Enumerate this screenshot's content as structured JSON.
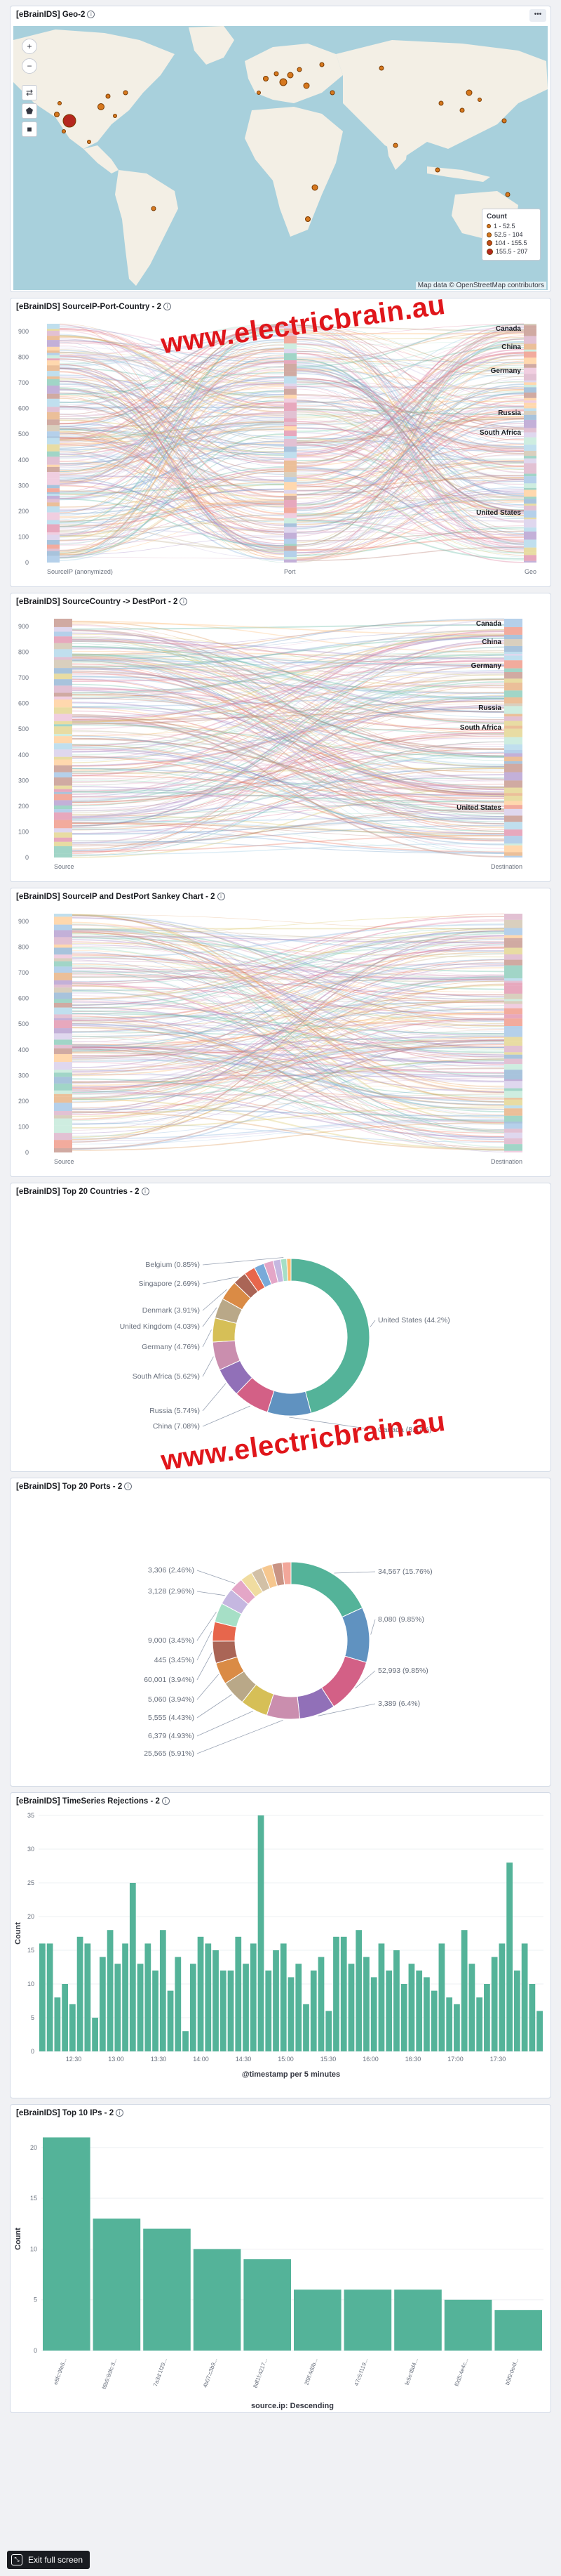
{
  "panels": {
    "geo": {
      "title": "[eBrainIDS] Geo-2"
    },
    "sankey_country": {
      "title": "[eBrainIDS] SourceIP-Port-Country - 2"
    },
    "sankey_dest": {
      "title": "[eBrainIDS] SourceCountry -> DestPort - 2"
    },
    "sankey_ipport": {
      "title": "[eBrainIDS] SourceIP and DestPort Sankey Chart - 2"
    },
    "top_countries": {
      "title": "[eBrainIDS] Top 20 Countries - 2"
    },
    "top_ports": {
      "title": "[eBrainIDS] Top 20 Ports - 2"
    },
    "timeseries": {
      "title": "[eBrainIDS] TimeSeries Rejections - 2"
    },
    "top_ips": {
      "title": "[eBrainIDS] Top 10 IPs - 2"
    }
  },
  "map": {
    "legend_title": "Count",
    "legend_items": [
      "1 - 52.5",
      "52.5 - 104",
      "104 - 155.5",
      "155.5 - 207"
    ],
    "attribution": "Map data © OpenStreetMap contributors",
    "buttons": [
      "+",
      "−",
      "⇄",
      "⬟",
      "■"
    ],
    "colors": {
      "water": "#a8d0dc",
      "land": "#f3efe5",
      "marker": "#d6781e"
    }
  },
  "watermark": {
    "text": "www.electricbrain.au"
  },
  "options_icon": "•••",
  "exit_fullscreen": "Exit full screen",
  "chart_data": [
    {
      "type": "sankey",
      "title": "[eBrainIDS] SourceIP-Port-Country - 2",
      "y_ticks": [
        0,
        100,
        200,
        300,
        400,
        500,
        600,
        700,
        800,
        900
      ],
      "ylim": [
        0,
        930
      ],
      "columns": [
        "SourceIP (anonymized)",
        "Port",
        "Geo"
      ],
      "node_labels": [
        "Canada",
        "China",
        "Germany",
        "Russia",
        "South Africa",
        "United States"
      ]
    },
    {
      "type": "sankey",
      "title": "[eBrainIDS] SourceCountry -> DestPort - 2",
      "y_ticks": [
        0,
        100,
        200,
        300,
        400,
        500,
        600,
        700,
        800,
        900
      ],
      "ylim": [
        0,
        930
      ],
      "columns": [
        "Source",
        "Destination"
      ],
      "node_labels": [
        "Canada",
        "China",
        "Germany",
        "Russia",
        "South Africa",
        "United States"
      ]
    },
    {
      "type": "sankey",
      "title": "[eBrainIDS] SourceIP and DestPort Sankey Chart - 2",
      "y_ticks": [
        0,
        100,
        200,
        300,
        400,
        500,
        600,
        700,
        800,
        900
      ],
      "ylim": [
        0,
        930
      ],
      "columns": [
        "Source",
        "Destination"
      ],
      "node_labels": []
    },
    {
      "type": "pie",
      "title": "[eBrainIDS] Top 20 Countries - 2",
      "labels": [
        "United States (44.2%)",
        "Canada (8.67%)",
        "China (7.08%)",
        "Russia (5.74%)",
        "South Africa (5.62%)",
        "Germany (4.76%)",
        "United Kingdom (4.03%)",
        "Denmark (3.91%)",
        "Singapore (2.69%)",
        "Belgium (0.85%)"
      ],
      "slices": [
        44.2,
        8.67,
        7.08,
        5.74,
        5.62,
        4.76,
        4.03,
        3.91,
        2.69,
        2.2,
        2.0,
        1.9,
        1.5,
        1.2,
        0.85
      ],
      "colors": [
        "#54b399",
        "#6092c0",
        "#d36086",
        "#9170b8",
        "#ca8eae",
        "#d6bf57",
        "#b9a888",
        "#da8b45",
        "#aa6556",
        "#e7664c",
        "#79aad9",
        "#e4a6c7",
        "#c5b7e0",
        "#a6dfc6",
        "#ffb86b"
      ]
    },
    {
      "type": "pie",
      "title": "[eBrainIDS] Top 20 Ports - 2",
      "labels": [
        "34,567 (15.76%)",
        "8,080 (9.85%)",
        "52,993 (9.85%)",
        "3,389 (6.4%)",
        "25,565 (5.91%)",
        "6,379 (4.93%)",
        "5,555 (4.43%)",
        "5,060 (3.94%)",
        "60,001 (3.94%)",
        "445 (3.45%)",
        "9,000 (3.45%)",
        "3,128 (2.96%)",
        "3,306 (2.46%)"
      ],
      "slices": [
        15.76,
        9.85,
        9.85,
        6.4,
        5.91,
        4.93,
        4.43,
        3.94,
        3.94,
        3.45,
        3.45,
        2.96,
        2.46,
        2.2,
        2.0,
        1.9,
        1.8,
        1.6
      ],
      "colors": [
        "#54b399",
        "#6092c0",
        "#d36086",
        "#9170b8",
        "#ca8eae",
        "#d6bf57",
        "#b9a888",
        "#da8b45",
        "#aa6556",
        "#e7664c",
        "#a6dfc6",
        "#c5b7e0",
        "#e4a6c7",
        "#f0dca0",
        "#d2c0a6",
        "#f6c78f",
        "#c99484",
        "#f2a79a"
      ]
    },
    {
      "type": "bar",
      "title": "[eBrainIDS] TimeSeries Rejections - 2",
      "xlabel": "@timestamp per 5 minutes",
      "ylabel": "Count",
      "ylim": [
        0,
        35
      ],
      "y_ticks": [
        0,
        5,
        10,
        15,
        20,
        25,
        30,
        35
      ],
      "x_ticks": [
        "12:30",
        "13:00",
        "13:30",
        "14:00",
        "14:30",
        "15:00",
        "15:30",
        "16:00",
        "16:30",
        "17:00",
        "17:30"
      ],
      "values": [
        16,
        16,
        8,
        10,
        7,
        17,
        16,
        5,
        14,
        18,
        13,
        16,
        25,
        13,
        16,
        12,
        18,
        9,
        14,
        3,
        13,
        17,
        16,
        15,
        12,
        12,
        17,
        13,
        16,
        35,
        12,
        15,
        16,
        11,
        13,
        7,
        12,
        14,
        6,
        17,
        17,
        13,
        18,
        14,
        11,
        16,
        12,
        15,
        10,
        13,
        12,
        11,
        9,
        16,
        8,
        7,
        18,
        13,
        8,
        10,
        14,
        16,
        28,
        12,
        16,
        10,
        6
      ],
      "color": "#54b399"
    },
    {
      "type": "bar",
      "title": "[eBrainIDS] Top 10 IPs - 2",
      "xlabel": "source.ip: Descending",
      "ylabel": "Count",
      "ylim": [
        0,
        22
      ],
      "y_ticks": [
        0,
        5,
        10,
        15,
        20
      ],
      "categories": [
        "e8fc:9fe6...",
        "f6b9:8dfc:3...",
        "7a3d:1f29...",
        "4b07:c3b9...",
        "8df1f:4217...",
        "2f9f:4d0b...",
        "47c5:f119...",
        "fe5e:f8d4...",
        "f0d5:4e4c...",
        "b5f9:0e4f..."
      ],
      "values": [
        21,
        13,
        12,
        10,
        9,
        6,
        6,
        6,
        5,
        4
      ],
      "color": "#54b399"
    }
  ]
}
